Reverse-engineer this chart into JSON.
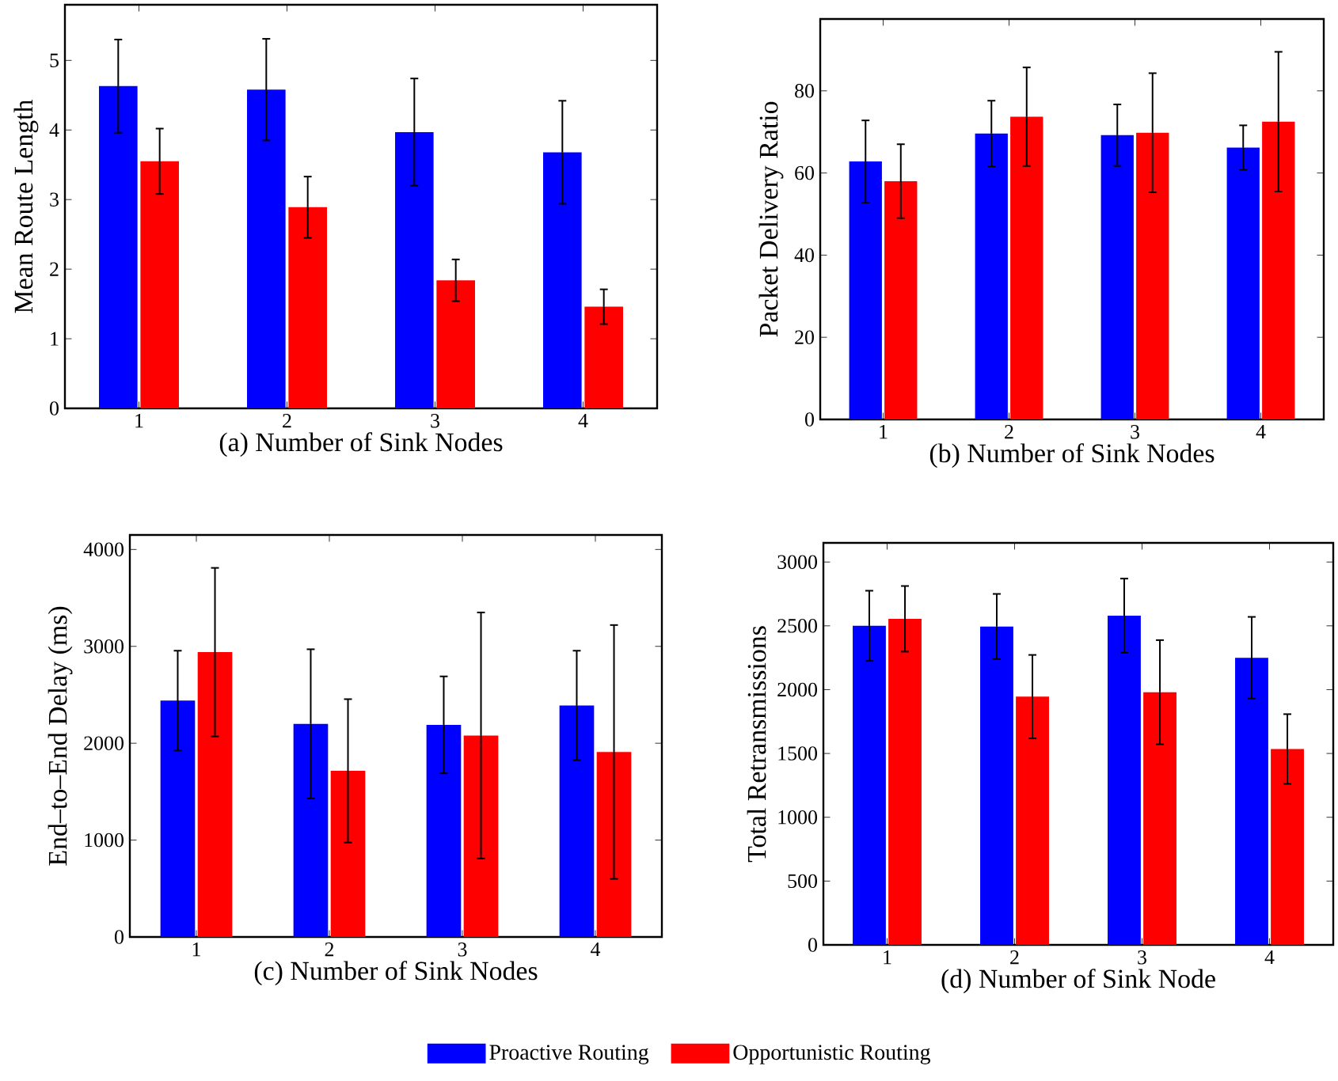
{
  "chart_data": [
    {
      "type": "bar",
      "xlabel": "(a) Number of Sink Nodes",
      "ylabel": "Mean Route Length",
      "categories": [
        "1",
        "2",
        "3",
        "4"
      ],
      "ylim": [
        0,
        5.8
      ],
      "yticks": [
        0,
        1,
        2,
        3,
        4,
        5
      ],
      "series": [
        {
          "color": "#0000ff",
          "values": [
            4.63,
            4.58,
            3.97,
            3.68
          ],
          "errors": [
            0.67,
            0.73,
            0.77,
            0.74
          ]
        },
        {
          "color": "#ff0000",
          "values": [
            3.55,
            2.89,
            1.84,
            1.46
          ],
          "errors": [
            0.47,
            0.44,
            0.3,
            0.25
          ]
        }
      ]
    },
    {
      "type": "bar",
      "xlabel": "(b) Number of Sink Nodes",
      "ylabel": "Packet Delivery Ratio",
      "categories": [
        "1",
        "2",
        "3",
        "4"
      ],
      "ylim": [
        0,
        97.5
      ],
      "yticks": [
        0,
        20,
        40,
        60,
        80
      ],
      "series": [
        {
          "color": "#0000ff",
          "values": [
            62.8,
            69.6,
            69.2,
            66.2
          ],
          "errors": [
            10,
            8,
            7.5,
            5.4
          ]
        },
        {
          "color": "#ff0000",
          "values": [
            58,
            73.7,
            69.8,
            72.5
          ],
          "errors": [
            9,
            12,
            14.5,
            17
          ]
        }
      ]
    },
    {
      "type": "bar",
      "xlabel": "(c) Number of Sink Nodes",
      "ylabel": "End–to–End Delay (ms)",
      "categories": [
        "1",
        "2",
        "3",
        "4"
      ],
      "ylim": [
        0,
        4150
      ],
      "yticks": [
        0,
        1000,
        2000,
        3000,
        4000
      ],
      "series": [
        {
          "color": "#0000ff",
          "values": [
            2440,
            2200,
            2190,
            2390
          ],
          "errors": [
            515,
            770,
            500,
            565
          ]
        },
        {
          "color": "#ff0000",
          "values": [
            2940,
            1715,
            2080,
            1910
          ],
          "errors": [
            870,
            740,
            1270,
            1310
          ]
        }
      ]
    },
    {
      "type": "bar",
      "xlabel": "(d) Number of Sink Node",
      "ylabel": "Total Retransmissions",
      "categories": [
        "1",
        "2",
        "3",
        "4"
      ],
      "ylim": [
        0,
        3150
      ],
      "yticks": [
        0,
        500,
        1000,
        1500,
        2000,
        2500,
        3000
      ],
      "legend": "bottom",
      "series": [
        {
          "name": "Proactive Routing",
          "color": "#0000ff",
          "values": [
            2500,
            2495,
            2580,
            2250
          ],
          "errors": [
            275,
            255,
            290,
            320
          ]
        },
        {
          "name": "Opportunistic Routing",
          "color": "#ff0000",
          "values": [
            2555,
            1945,
            1980,
            1535
          ],
          "errors": [
            257,
            327,
            408,
            273
          ]
        }
      ]
    }
  ]
}
